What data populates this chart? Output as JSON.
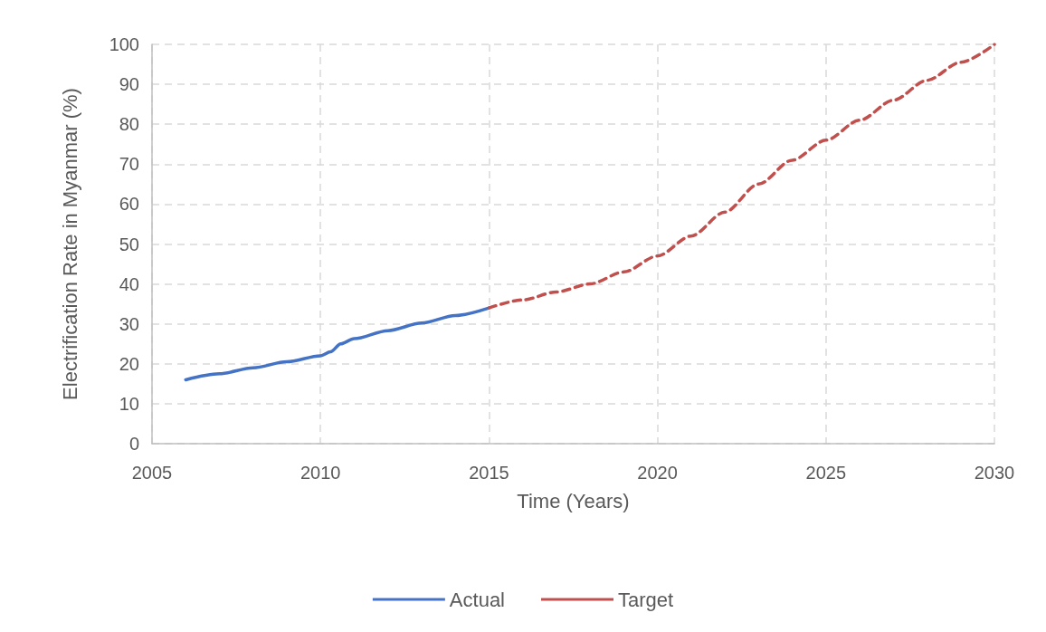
{
  "chart_data": {
    "type": "line",
    "xlabel": "Time (Years)",
    "ylabel": "Electrification Rate in Myanmar (%)",
    "xlim": [
      2005,
      2030
    ],
    "xticks": [
      2005,
      2010,
      2015,
      2020,
      2025,
      2030
    ],
    "ylim": [
      0,
      100
    ],
    "yticks": [
      0,
      10,
      20,
      30,
      40,
      50,
      60,
      70,
      80,
      90,
      100
    ],
    "grid": true,
    "legend": "bottom",
    "marker": "none",
    "series": [
      {
        "name": "Actual",
        "color": "#4472c4",
        "line_style": "solid",
        "x": [
          2006,
          2007,
          2008,
          2009,
          2010,
          2010.3,
          2010.6,
          2011,
          2012,
          2013,
          2014,
          2015
        ],
        "values": [
          16,
          17.5,
          19,
          20.5,
          22,
          23,
          25,
          26.3,
          28.3,
          30.2,
          32.1,
          34
        ]
      },
      {
        "name": "Target",
        "color": "#c0504d",
        "line_style": "dashed",
        "x": [
          2015,
          2016,
          2017,
          2018,
          2019,
          2020,
          2021,
          2022,
          2023,
          2024,
          2025,
          2026,
          2027,
          2028,
          2029,
          2030
        ],
        "values": [
          34,
          36,
          38,
          40,
          43,
          47,
          52,
          58,
          65,
          71,
          76,
          81,
          86,
          91,
          95.5,
          100
        ]
      }
    ]
  }
}
